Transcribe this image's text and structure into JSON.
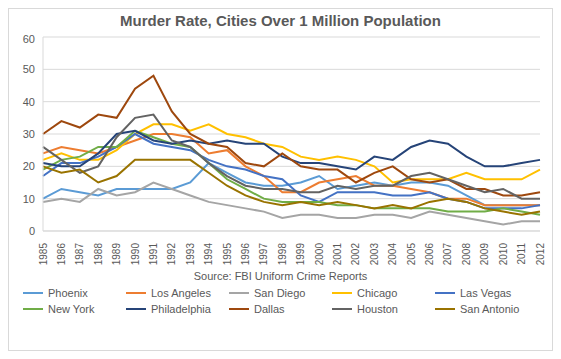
{
  "chart_data": {
    "type": "line",
    "title": "Murder Rate, Cities Over 1 Million Population",
    "annotation": "Source: FBI Uniform Crime Reports",
    "categories": [
      "1985",
      "1986",
      "1987",
      "1988",
      "1989",
      "1990",
      "1991",
      "1992",
      "1993",
      "1994",
      "1995",
      "1996",
      "1997",
      "1998",
      "1999",
      "2000",
      "2001",
      "2002",
      "2003",
      "2004",
      "2005",
      "2006",
      "2007",
      "2008",
      "2009",
      "2010",
      "2011",
      "2012"
    ],
    "series": [
      {
        "name": "Phoenix",
        "color": "#5b9bd5",
        "values": [
          10,
          13,
          12,
          11,
          13,
          13,
          13,
          13,
          15,
          21,
          18,
          15,
          14,
          14,
          15,
          17,
          13,
          14,
          15,
          14,
          15,
          15,
          14,
          11,
          8,
          8,
          8,
          8
        ]
      },
      {
        "name": "Los Angeles",
        "color": "#ed7d31",
        "values": [
          24,
          26,
          25,
          24,
          26,
          28,
          30,
          30,
          29,
          24,
          25,
          20,
          17,
          12,
          12,
          15,
          16,
          17,
          14,
          14,
          13,
          12,
          10,
          10,
          8,
          8,
          8,
          8
        ]
      },
      {
        "name": "San Diego",
        "color": "#a5a5a5",
        "values": [
          9,
          10,
          9,
          13,
          11,
          12,
          15,
          13,
          11,
          9,
          8,
          7,
          6,
          4,
          5,
          5,
          4,
          4,
          5,
          5,
          4,
          6,
          5,
          4,
          3,
          2,
          3,
          3
        ]
      },
      {
        "name": "Chicago",
        "color": "#ffc000",
        "values": [
          22,
          24,
          22,
          22,
          25,
          30,
          33,
          33,
          31,
          33,
          30,
          29,
          27,
          26,
          23,
          22,
          23,
          22,
          20,
          15,
          16,
          16,
          16,
          18,
          16,
          16,
          16,
          19
        ]
      },
      {
        "name": "Las Vegas",
        "color": "#4472c4",
        "values": [
          17,
          21,
          21,
          23,
          26,
          30,
          27,
          26,
          25,
          22,
          20,
          19,
          17,
          16,
          11,
          9,
          12,
          12,
          12,
          11,
          11,
          12,
          10,
          9,
          7,
          7,
          7,
          8
        ]
      },
      {
        "name": "New York",
        "color": "#70ad47",
        "values": [
          19,
          22,
          23,
          26,
          26,
          31,
          29,
          27,
          26,
          21,
          16,
          13,
          10,
          9,
          9,
          9,
          8,
          8,
          7,
          7,
          7,
          7,
          6,
          6,
          6,
          7,
          6,
          5
        ]
      },
      {
        "name": "Philadelphia",
        "color": "#264478",
        "values": [
          21,
          20,
          20,
          24,
          30,
          31,
          28,
          27,
          28,
          27,
          28,
          27,
          27,
          23,
          21,
          21,
          20,
          19,
          23,
          22,
          26,
          28,
          27,
          23,
          20,
          20,
          21,
          22
        ]
      },
      {
        "name": "Dallas",
        "color": "#9e480e",
        "values": [
          30,
          34,
          32,
          36,
          35,
          44,
          48,
          37,
          30,
          27,
          26,
          21,
          20,
          24,
          20,
          19,
          19,
          15,
          18,
          20,
          16,
          15,
          16,
          13,
          13,
          11,
          11,
          12
        ]
      },
      {
        "name": "Houston",
        "color": "#636363",
        "values": [
          26,
          22,
          18,
          20,
          29,
          35,
          36,
          28,
          26,
          21,
          17,
          14,
          13,
          13,
          12,
          12,
          14,
          13,
          14,
          14,
          17,
          18,
          16,
          14,
          12,
          13,
          10,
          10
        ]
      },
      {
        "name": "San Antonio",
        "color": "#997300",
        "values": [
          20,
          18,
          19,
          15,
          17,
          22,
          22,
          22,
          22,
          18,
          14,
          11,
          9,
          8,
          9,
          8,
          9,
          8,
          7,
          8,
          7,
          9,
          10,
          9,
          7,
          6,
          5,
          6
        ]
      }
    ],
    "ylim": [
      0,
      60
    ],
    "yticks": [
      0,
      10,
      20,
      30,
      40,
      50,
      60
    ],
    "grid": true,
    "legend": "bottom"
  }
}
